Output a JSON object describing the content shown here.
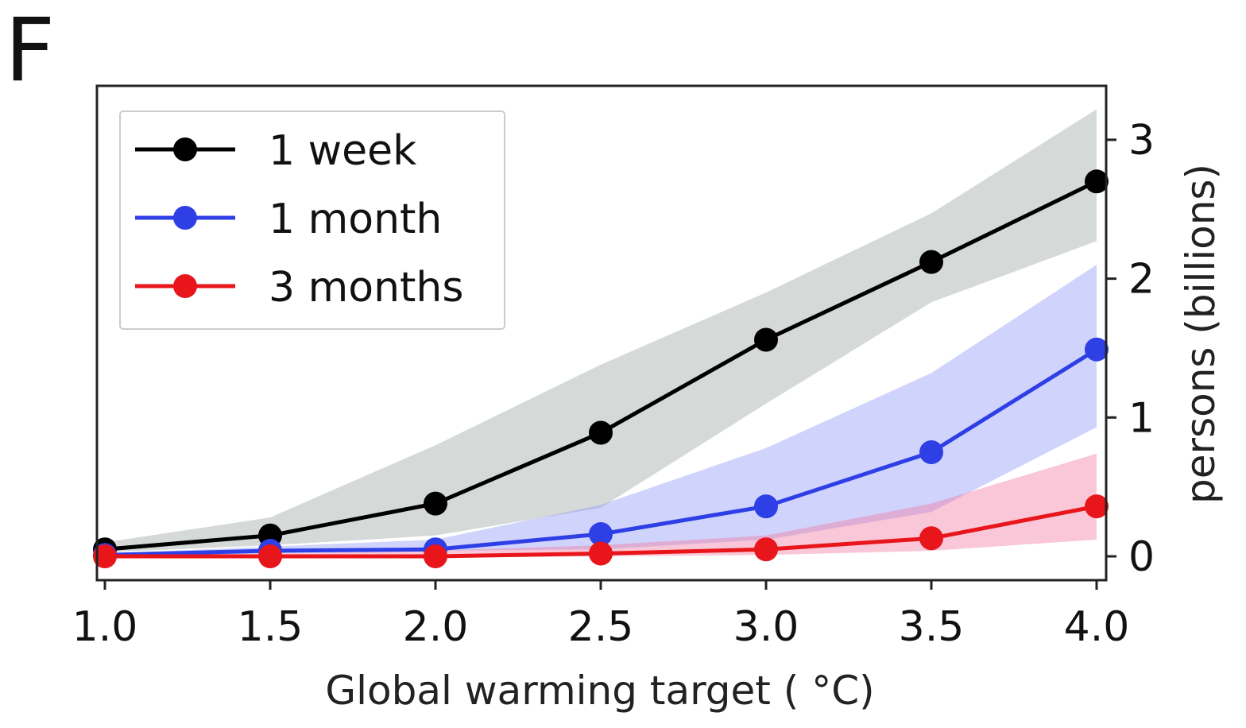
{
  "panel_label": "F",
  "chart_data": {
    "type": "line",
    "x": [
      1.0,
      1.5,
      2.0,
      2.5,
      3.0,
      3.5,
      4.0
    ],
    "xticks": [
      "1.0",
      "1.5",
      "2.0",
      "2.5",
      "3.0",
      "3.5",
      "4.0"
    ],
    "yticks": [
      "0",
      "1",
      "2",
      "3"
    ],
    "xlabel": "Global warming target ( °C)",
    "ylabel": "persons (billions)",
    "xlim": [
      1.0,
      4.0
    ],
    "ylim": [
      -0.18,
      3.35
    ],
    "yaxis_side": "right",
    "legend_position": "upper-left",
    "grid": false,
    "series": [
      {
        "name": "1 week",
        "color": "#000000",
        "band_color": "#9aa59f",
        "values": [
          0.05,
          0.15,
          0.38,
          0.89,
          1.56,
          2.12,
          2.7
        ],
        "lower": [
          0.03,
          0.08,
          0.15,
          0.35,
          1.1,
          1.83,
          2.27
        ],
        "upper": [
          0.1,
          0.28,
          0.8,
          1.38,
          1.9,
          2.47,
          3.22
        ]
      },
      {
        "name": "1 month",
        "color": "#2e3fe6",
        "band_color": "#8f95f5",
        "values": [
          0.01,
          0.04,
          0.05,
          0.16,
          0.36,
          0.75,
          1.49
        ],
        "lower": [
          0.0,
          0.02,
          0.04,
          0.05,
          0.12,
          0.32,
          0.93
        ],
        "upper": [
          0.02,
          0.07,
          0.12,
          0.37,
          0.78,
          1.32,
          2.1
        ]
      },
      {
        "name": "3 months",
        "color": "#e8161b",
        "band_color": "#f17aa0",
        "values": [
          0.0,
          0.0,
          0.0,
          0.02,
          0.05,
          0.13,
          0.36
        ],
        "lower": [
          -0.01,
          -0.01,
          -0.01,
          0.0,
          0.01,
          0.04,
          0.12
        ],
        "upper": [
          0.01,
          0.02,
          0.04,
          0.08,
          0.15,
          0.38,
          0.74
        ]
      }
    ]
  }
}
